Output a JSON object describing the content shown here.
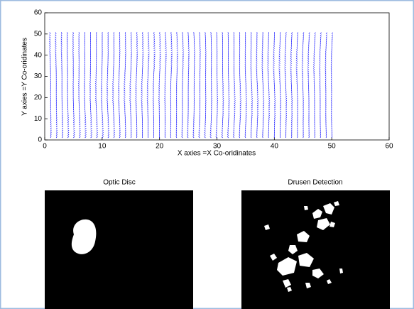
{
  "chart_data": [
    {
      "type": "quiver",
      "xlabel": "X axies =X Co-oridinates",
      "ylabel": "Y axies =Y Co-oridinates",
      "xlim": [
        0,
        60
      ],
      "ylim": [
        0,
        60
      ],
      "xticks": [
        0,
        10,
        20,
        30,
        40,
        50,
        60
      ],
      "yticks": [
        0,
        10,
        20,
        30,
        40,
        50,
        60
      ],
      "color": "#0000ff",
      "x": [
        1,
        2,
        3,
        4,
        5,
        6,
        7,
        8,
        9,
        10,
        11,
        12,
        13,
        14,
        15,
        16,
        17,
        18,
        19,
        20,
        21,
        22,
        23,
        24,
        25,
        26,
        27,
        28,
        29,
        30,
        31,
        32,
        33,
        34,
        35,
        36,
        37,
        38,
        39,
        40,
        41,
        42,
        43,
        44,
        45,
        46,
        47,
        48,
        49,
        50
      ],
      "y": [
        1,
        2,
        3,
        4,
        5,
        6,
        7,
        8,
        9,
        10,
        11,
        12,
        13,
        14,
        15,
        16,
        17,
        18,
        19,
        20,
        21,
        22,
        23,
        24,
        25,
        26,
        27,
        28,
        29,
        30,
        31,
        32,
        33,
        34,
        35,
        36,
        37,
        38,
        39,
        40,
        41,
        42,
        43,
        44,
        45,
        46,
        47,
        48,
        49,
        50
      ]
    },
    {
      "type": "image",
      "title": "Optic Disc"
    },
    {
      "type": "image",
      "title": "Drusen Detection"
    }
  ]
}
